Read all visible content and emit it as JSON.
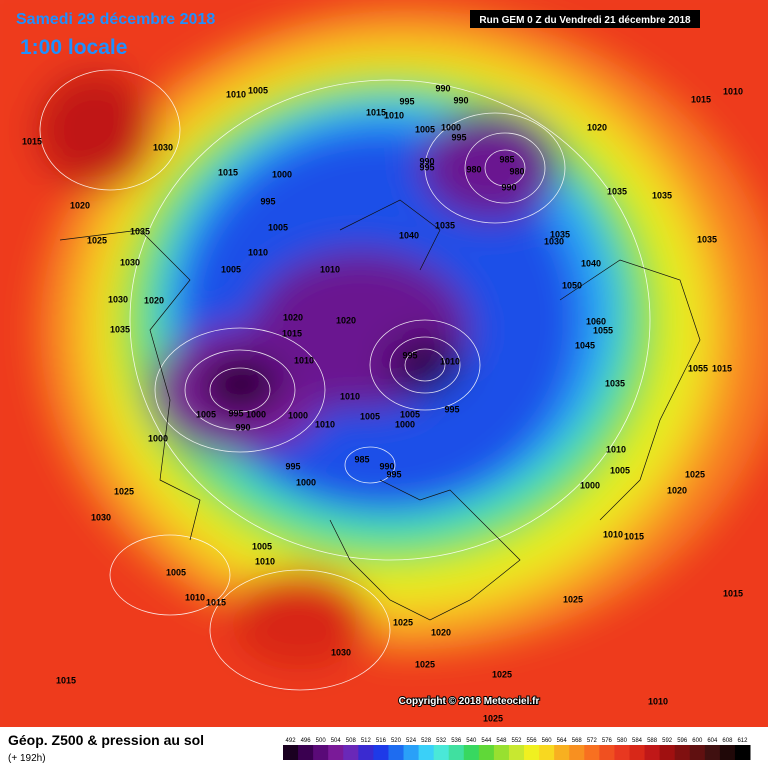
{
  "header": {
    "date": "Samedi 29 décembre 2018",
    "time": "1:00 locale",
    "run": "Run GEM 0 Z du Vendredi 21 décembre 2018"
  },
  "copyright": "Copyright © 2018 Meteociel.fr",
  "footer": {
    "title": "Géop. Z500 & pression au sol",
    "lead": "(+ 192h)"
  },
  "legend": {
    "levels": [
      492,
      496,
      500,
      504,
      508,
      512,
      516,
      520,
      524,
      528,
      532,
      536,
      540,
      544,
      548,
      552,
      556,
      560,
      564,
      568,
      572,
      576,
      580,
      584,
      588,
      592,
      596,
      600,
      604,
      608,
      612
    ],
    "colors": [
      "#1a0020",
      "#3a0050",
      "#5a0a78",
      "#7a1a98",
      "#6a28b8",
      "#3a2ad0",
      "#1e3ae8",
      "#1e6cf0",
      "#2aa0f8",
      "#3ad0f8",
      "#4ae8d8",
      "#40e0a0",
      "#38d860",
      "#60d838",
      "#98e030",
      "#c8e830",
      "#f0f020",
      "#f8d820",
      "#f8b020",
      "#f89020",
      "#f87020",
      "#f05020",
      "#e83820",
      "#d82818",
      "#c01818",
      "#a01010",
      "#801010",
      "#601010",
      "#401010",
      "#200808",
      "#000000"
    ]
  },
  "isobars": [
    1010,
    1005,
    1015,
    1030,
    1015,
    1000,
    995,
    1005,
    1020,
    1025,
    1035,
    1030,
    1010,
    1005,
    1010,
    1030,
    1020,
    1035,
    1020,
    1020,
    1015,
    1010,
    1005,
    995,
    1000,
    990,
    1000,
    1010,
    1010,
    1005,
    1005,
    1000,
    995,
    995,
    1000,
    985,
    990,
    995,
    1000,
    1025,
    1030,
    1005,
    1010,
    1005,
    1010,
    1015,
    1030,
    1015,
    1025,
    1020,
    1025,
    1025,
    1025,
    1025,
    1010,
    1015,
    1000,
    1010,
    1015,
    1005,
    1010,
    1020,
    1025,
    1035,
    1045,
    1055,
    1060,
    1050,
    1040,
    1030,
    1035,
    1040,
    1035,
    1035,
    1035,
    1035,
    1020,
    1015,
    1010,
    1015,
    1010,
    995,
    990,
    990,
    1000,
    995,
    1005,
    995,
    990,
    980,
    985,
    980,
    990,
    995,
    1010,
    1055,
    1015
  ]
}
